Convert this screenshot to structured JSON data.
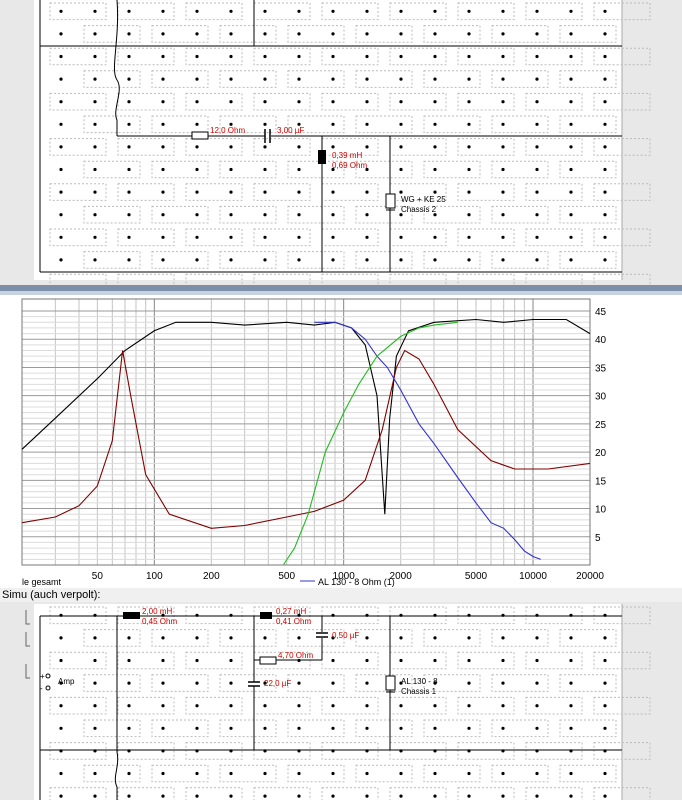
{
  "top_schematic": {
    "resistor1": "12,0 Ohm",
    "capacitor1": "3,00 µF",
    "inductor1_value": "0,39 mH",
    "inductor1_res": "0,69 Ohm",
    "driver_name": "WG + KE 25",
    "driver_chassis": "Chassis 2"
  },
  "graph": {
    "legend_left": "le gesamt",
    "legend_item": "AL 130 - 8 Ohm (1)",
    "colors": {
      "total": "#000000",
      "impedance": "#800000",
      "woofer": "#3333cc",
      "tweeter": "#22bb22"
    }
  },
  "chart_data": {
    "type": "line",
    "x_scale": "log",
    "xlim": [
      20,
      20000
    ],
    "ylim": [
      0,
      45
    ],
    "x_ticks": [
      "50",
      "100",
      "200",
      "500",
      "1000",
      "2000",
      "5000",
      "10000",
      "20000"
    ],
    "y_ticks": [
      "5",
      "10",
      "15",
      "20",
      "25",
      "30",
      "35",
      "40",
      "45"
    ],
    "y_axis_position": "right",
    "grid": true,
    "series": [
      {
        "color": "#000000",
        "x": [
          20,
          30,
          50,
          70,
          100,
          130,
          200,
          300,
          500,
          700,
          900,
          1100,
          1300,
          1500,
          1650,
          1750,
          1900,
          2200,
          3000,
          5000,
          7000,
          10000,
          15000,
          20000
        ],
        "y": [
          20.5,
          26,
          33,
          38,
          41.5,
          43,
          43,
          42.5,
          43,
          42.5,
          43,
          42,
          39,
          30,
          9,
          26,
          37,
          41.5,
          43,
          43.5,
          43,
          43.5,
          43.5,
          41
        ]
      },
      {
        "color": "#800000",
        "x": [
          20,
          30,
          40,
          50,
          60,
          68,
          75,
          90,
          120,
          200,
          300,
          500,
          700,
          1000,
          1300,
          1600,
          1900,
          2100,
          2500,
          3000,
          4000,
          6000,
          8000,
          12000,
          20000
        ],
        "y": [
          7.5,
          8.5,
          10.5,
          14,
          22,
          38,
          30,
          16,
          9,
          6.5,
          7,
          8.5,
          9.5,
          11.5,
          15,
          24,
          35,
          38,
          36.5,
          32,
          24,
          18.5,
          17,
          17,
          18
        ]
      },
      {
        "color": "#3333cc",
        "x": [
          700,
          900,
          1100,
          1300,
          1500,
          1700,
          2000,
          2500,
          3000,
          4000,
          5000,
          6000,
          7000,
          8000,
          9000,
          10000,
          11000
        ],
        "y": [
          43,
          43,
          42,
          40,
          37,
          35,
          31,
          25,
          21.5,
          15.5,
          11,
          7.5,
          6.5,
          4.5,
          2.5,
          1.5,
          1
        ]
      },
      {
        "color": "#22bb22",
        "x": [
          480,
          550,
          650,
          800,
          1000,
          1200,
          1500,
          2000,
          2500,
          3000,
          4000
        ],
        "y": [
          0,
          3,
          9,
          20,
          27,
          32,
          37,
          40.5,
          42,
          42.5,
          43
        ]
      }
    ]
  },
  "bottom_schematic": {
    "panel_title": "Simu (auch verpolt):",
    "inductor1_value": "2,00 mH",
    "inductor1_res": "0,45 Ohm",
    "inductor2_value": "0,27 mH",
    "inductor2_res": "0,41 Ohm",
    "capacitor1": "0,50 µF",
    "resistor1": "4,70 Ohm",
    "capacitor2": "22,0 µF",
    "amp_label": "Amp",
    "amp_plus": "+",
    "amp_minus": "-",
    "driver_name": "AL 130 - 8",
    "driver_chassis": "Chassis 1"
  }
}
